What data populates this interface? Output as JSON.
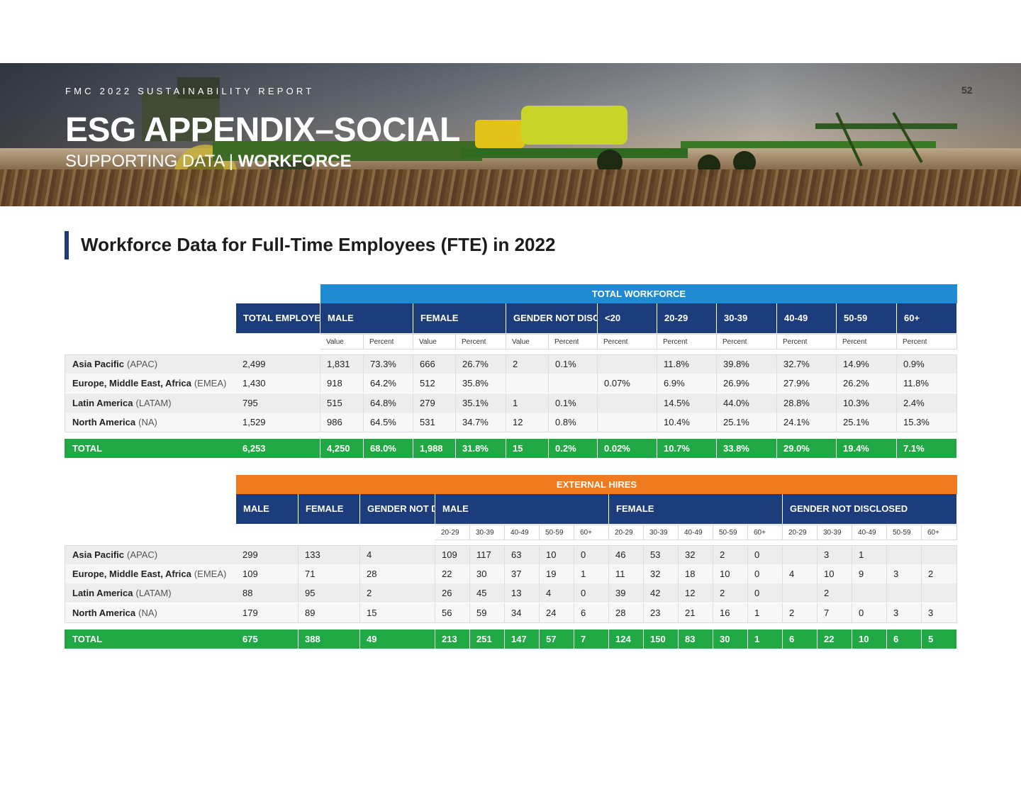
{
  "header": {
    "kicker": "FMC 2022 SUSTAINABILITY REPORT",
    "page_number": "52",
    "title": "ESG APPENDIX–SOCIAL",
    "subtitle_regular": "SUPPORTING DATA",
    "subtitle_bold": "WORKFORCE"
  },
  "section_title": "Workforce Data for Full-Time Employees (FTE) in 2022",
  "colors": {
    "navy": "#1c3c7c",
    "blue_band": "#1e8bd2",
    "orange_band": "#f07b1e",
    "green_total": "#20a845"
  },
  "workforce": {
    "band": "TOTAL WORKFORCE",
    "headers": [
      "TOTAL EMPLOYEES",
      "MALE",
      "FEMALE",
      "GENDER NOT DISCLOSED",
      "<20",
      "20-29",
      "30-39",
      "40-49",
      "50-59",
      "60+"
    ],
    "subheaders": [
      "Value",
      "Percent",
      "Value",
      "Percent",
      "Value",
      "Percent",
      "Percent",
      "Percent",
      "Percent",
      "Percent",
      "Percent",
      "Percent"
    ],
    "rows": [
      {
        "region": "Asia Pacific",
        "abbr": "(APAC)",
        "cells": [
          "2,499",
          "1,831",
          "73.3%",
          "666",
          "26.7%",
          "2",
          "0.1%",
          "",
          "11.8%",
          "39.8%",
          "32.7%",
          "14.9%",
          "0.9%"
        ]
      },
      {
        "region": "Europe, Middle East, Africa",
        "abbr": "(EMEA)",
        "cells": [
          "1,430",
          "918",
          "64.2%",
          "512",
          "35.8%",
          "",
          "",
          "0.07%",
          "6.9%",
          "26.9%",
          "27.9%",
          "26.2%",
          "11.8%"
        ]
      },
      {
        "region": "Latin America",
        "abbr": "(LATAM)",
        "cells": [
          "795",
          "515",
          "64.8%",
          "279",
          "35.1%",
          "1",
          "0.1%",
          "",
          "14.5%",
          "44.0%",
          "28.8%",
          "10.3%",
          "2.4%"
        ]
      },
      {
        "region": "North America",
        "abbr": "(NA)",
        "cells": [
          "1,529",
          "986",
          "64.5%",
          "531",
          "34.7%",
          "12",
          "0.8%",
          "",
          "10.4%",
          "25.1%",
          "24.1%",
          "25.1%",
          "15.3%"
        ]
      }
    ],
    "total": {
      "label": "TOTAL",
      "cells": [
        "6,253",
        "4,250",
        "68.0%",
        "1,988",
        "31.8%",
        "15",
        "0.2%",
        "0.02%",
        "10.7%",
        "33.8%",
        "29.0%",
        "19.4%",
        "7.1%"
      ]
    }
  },
  "hires": {
    "band": "EXTERNAL HIRES",
    "headers": [
      "MALE",
      "FEMALE",
      "GENDER NOT DISCLOSED",
      "MALE",
      "FEMALE",
      "GENDER NOT DISCLOSED"
    ],
    "subheaders": [
      "20-29",
      "30-39",
      "40-49",
      "50-59",
      "60+",
      "20-29",
      "30-39",
      "40-49",
      "50-59",
      "60+",
      "20-29",
      "30-39",
      "40-49",
      "50-59",
      "60+"
    ],
    "rows": [
      {
        "region": "Asia Pacific",
        "abbr": "(APAC)",
        "cells": [
          "299",
          "133",
          "4",
          "109",
          "117",
          "63",
          "10",
          "0",
          "46",
          "53",
          "32",
          "2",
          "0",
          "",
          "3",
          "1",
          "",
          ""
        ]
      },
      {
        "region": "Europe, Middle East, Africa",
        "abbr": "(EMEA)",
        "cells": [
          "109",
          "71",
          "28",
          "22",
          "30",
          "37",
          "19",
          "1",
          "11",
          "32",
          "18",
          "10",
          "0",
          "4",
          "10",
          "9",
          "3",
          "2"
        ]
      },
      {
        "region": "Latin America",
        "abbr": "(LATAM)",
        "cells": [
          "88",
          "95",
          "2",
          "26",
          "45",
          "13",
          "4",
          "0",
          "39",
          "42",
          "12",
          "2",
          "0",
          "",
          "2",
          "",
          "",
          ""
        ]
      },
      {
        "region": "North America",
        "abbr": "(NA)",
        "cells": [
          "179",
          "89",
          "15",
          "56",
          "59",
          "34",
          "24",
          "6",
          "28",
          "23",
          "21",
          "16",
          "1",
          "2",
          "7",
          "0",
          "3",
          "3"
        ]
      }
    ],
    "total": {
      "label": "TOTAL",
      "cells": [
        "675",
        "388",
        "49",
        "213",
        "251",
        "147",
        "57",
        "7",
        "124",
        "150",
        "83",
        "30",
        "1",
        "6",
        "22",
        "10",
        "6",
        "5"
      ]
    }
  }
}
